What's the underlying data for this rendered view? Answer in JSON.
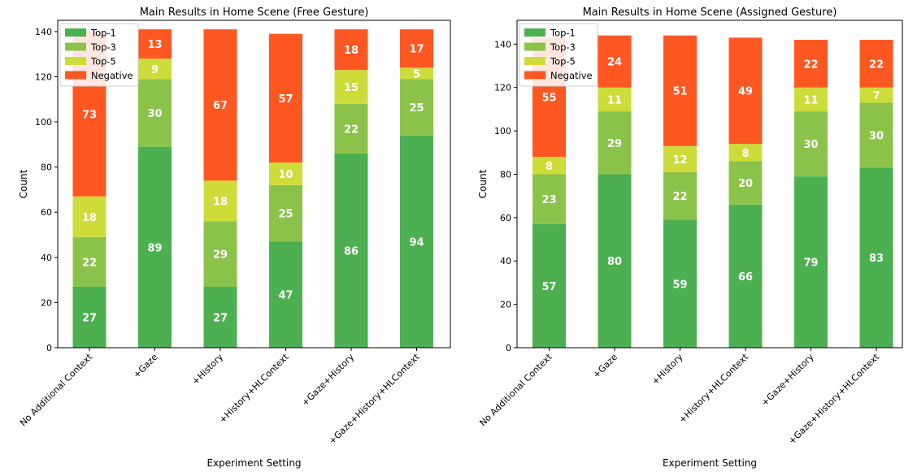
{
  "chart_data": [
    {
      "type": "bar",
      "stacked": true,
      "title": "Main Results in Home Scene (Free Gesture)",
      "xlabel": "Experiment Setting",
      "ylabel": "Count",
      "ylim": [
        0,
        145
      ],
      "yticks": [
        0,
        20,
        40,
        60,
        80,
        100,
        120,
        140
      ],
      "legend_position": "top-left",
      "categories": [
        "No Additional Context",
        "+Gaze",
        "+History",
        "+History+HLContext",
        "+Gaze+History",
        "+Gaze+History+HLContext"
      ],
      "series": [
        {
          "name": "Top-1",
          "color": "#4caf50",
          "values": [
            27,
            89,
            27,
            47,
            86,
            94
          ]
        },
        {
          "name": "Top-3",
          "color": "#8bc34a",
          "values": [
            22,
            30,
            29,
            25,
            22,
            25
          ]
        },
        {
          "name": "Top-5",
          "color": "#cddc39",
          "values": [
            18,
            9,
            18,
            10,
            15,
            5
          ]
        },
        {
          "name": "Negative",
          "color": "#ff5722",
          "values": [
            73,
            13,
            67,
            57,
            18,
            17
          ]
        }
      ]
    },
    {
      "type": "bar",
      "stacked": true,
      "title": "Main Results in Home Scene (Assigned Gesture)",
      "xlabel": "Experiment Setting",
      "ylabel": "Count",
      "ylim": [
        0,
        151
      ],
      "yticks": [
        0,
        20,
        40,
        60,
        80,
        100,
        120,
        140
      ],
      "legend_position": "top-left",
      "categories": [
        "No Additional Context",
        "+Gaze",
        "+History",
        "+History+HLContext",
        "+Gaze+History",
        "+Gaze+History+HLContext"
      ],
      "series": [
        {
          "name": "Top-1",
          "color": "#4caf50",
          "values": [
            57,
            80,
            59,
            66,
            79,
            83
          ]
        },
        {
          "name": "Top-3",
          "color": "#8bc34a",
          "values": [
            23,
            29,
            22,
            20,
            30,
            30
          ]
        },
        {
          "name": "Top-5",
          "color": "#cddc39",
          "values": [
            8,
            11,
            12,
            8,
            11,
            7
          ]
        },
        {
          "name": "Negative",
          "color": "#ff5722",
          "values": [
            55,
            24,
            51,
            49,
            22,
            22
          ]
        }
      ]
    }
  ]
}
